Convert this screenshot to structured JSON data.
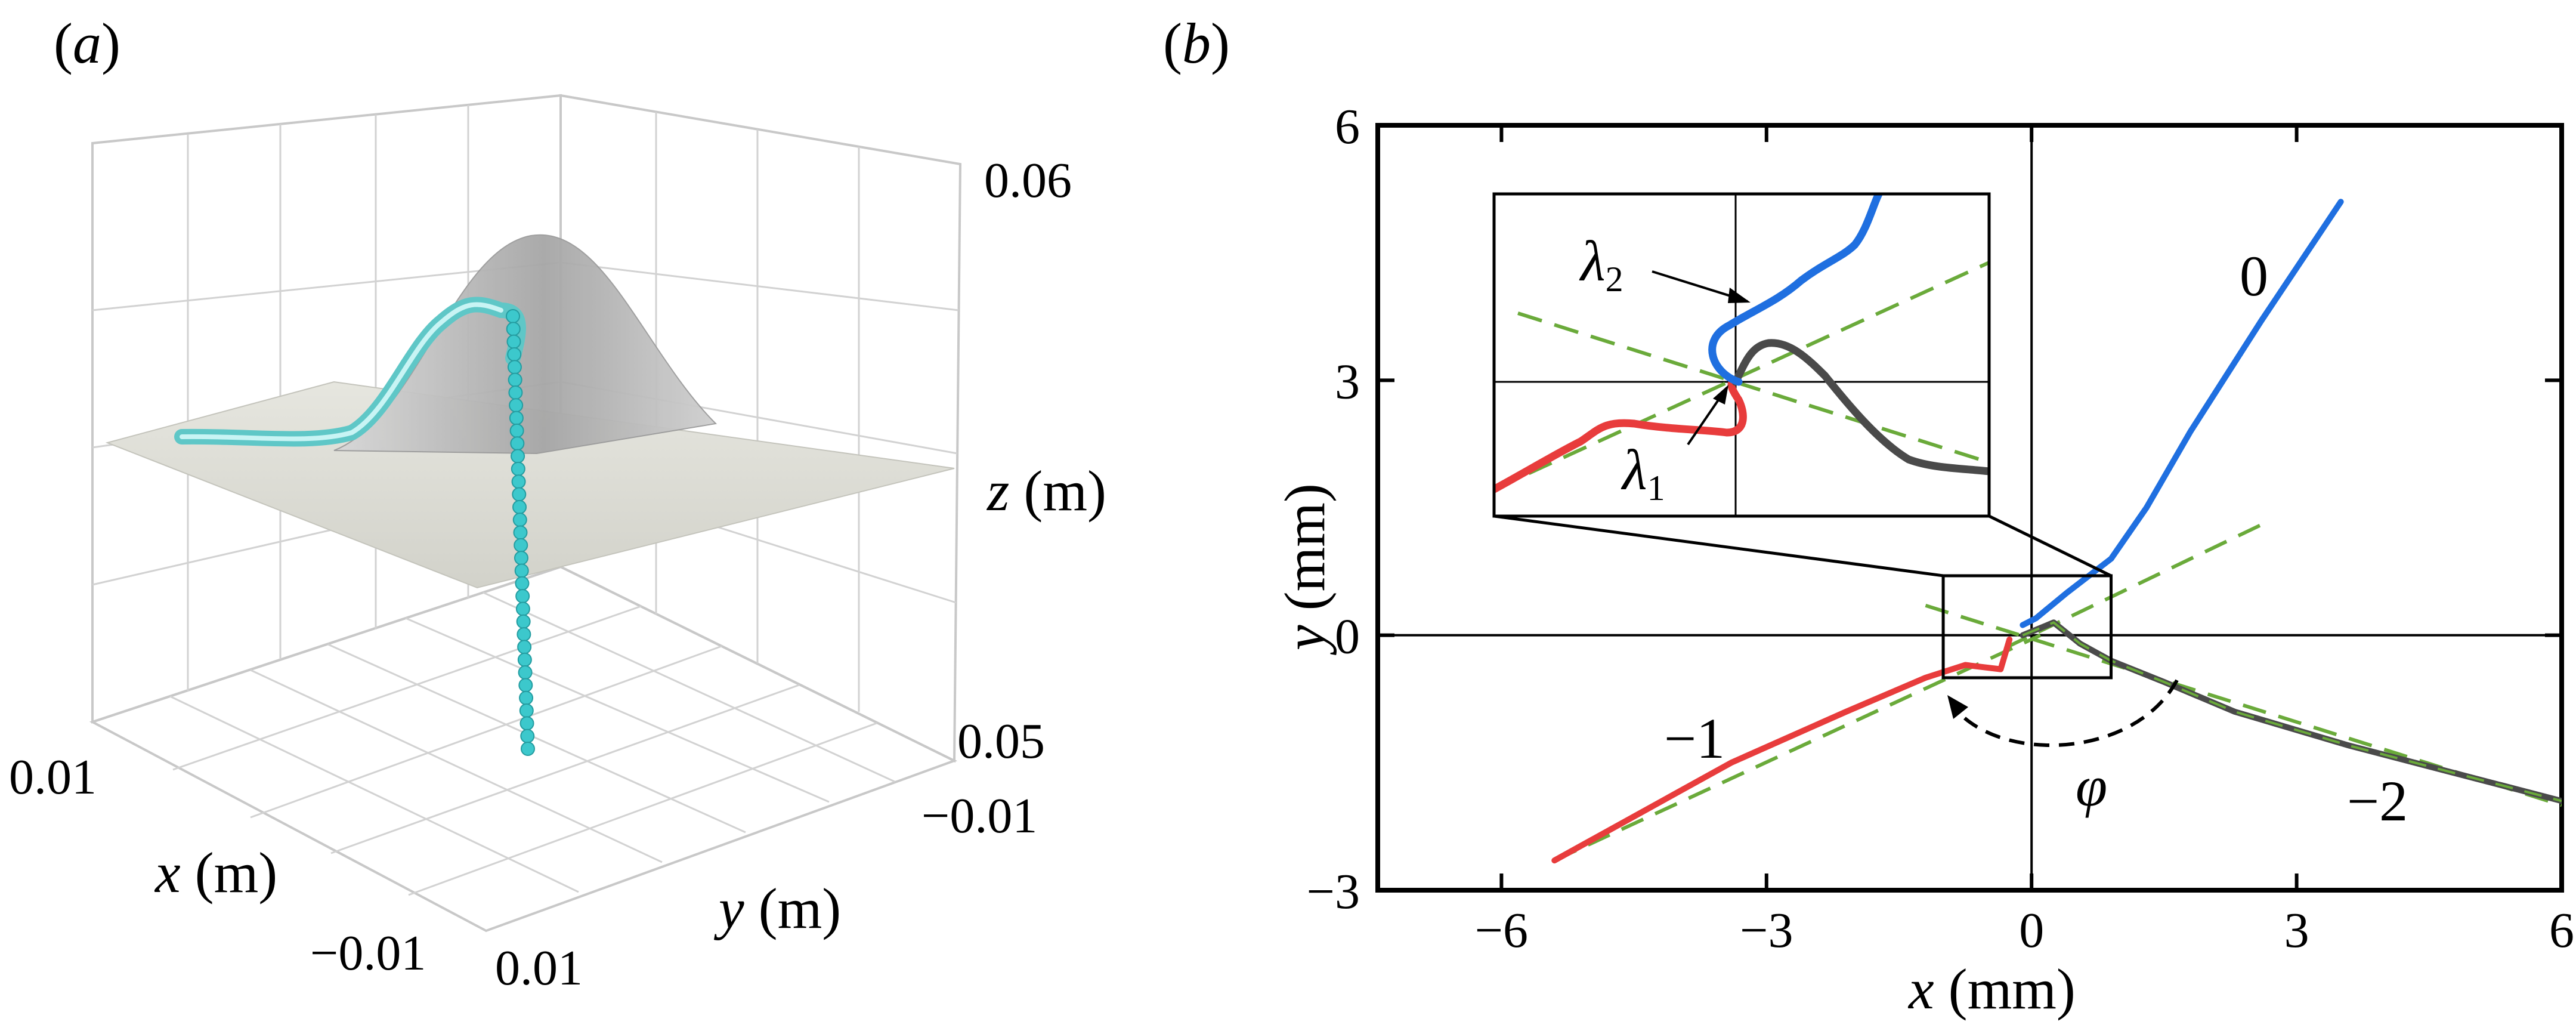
{
  "chart_data": [
    {
      "panel": "(a)",
      "type": "surface-3d",
      "xlabel": "x (m)",
      "ylabel": "y (m)",
      "zlabel": "z (m)",
      "x_ticks": [
        "0.01",
        "−0.01"
      ],
      "y_ticks": [
        "−0.01",
        "0.01"
      ],
      "z_ticks": [
        "0.06",
        "0.05"
      ],
      "xlim": [
        -0.01,
        0.01
      ],
      "ylim": [
        -0.01,
        0.01
      ],
      "zlim": [
        0.05,
        0.06
      ],
      "series": [
        {
          "name": "gaussian surface",
          "color": "#b4b4b4"
        },
        {
          "name": "flat plane",
          "color": "#dcdcd4"
        },
        {
          "name": "particle trajectory",
          "color": "#6fd6d6"
        }
      ]
    },
    {
      "panel": "(b)",
      "type": "line",
      "xlabel": "x (mm)",
      "ylabel": "y (mm)",
      "xlim": [
        -7.4,
        6
      ],
      "ylim": [
        -3,
        6
      ],
      "x_ticks": [
        -6,
        -3,
        0,
        3,
        6
      ],
      "y_ticks": [
        -3,
        0,
        3,
        6
      ],
      "x_tick_labels": [
        "−6",
        "−3",
        "0",
        "3",
        "6"
      ],
      "y_tick_labels": [
        "−3",
        "0",
        "3",
        "6"
      ],
      "series": [
        {
          "name": "0",
          "color": "#1f6fe0",
          "x": [
            -0.1,
            0.05,
            0.4,
            0.9,
            1.3,
            1.8,
            2.6,
            3.5
          ],
          "y": [
            0.12,
            0.2,
            0.5,
            0.9,
            1.5,
            2.4,
            3.7,
            5.1
          ]
        },
        {
          "name": "−1",
          "color": "#e83c3c",
          "x": [
            -0.25,
            -0.35,
            -0.75,
            -1.2,
            -2.1,
            -3.4,
            -5.4
          ],
          "y": [
            -0.05,
            -0.4,
            -0.35,
            -0.5,
            -0.9,
            -1.5,
            -2.65
          ]
        },
        {
          "name": "−2",
          "color": "#4a4a4a",
          "x": [
            -0.1,
            0.25,
            0.55,
            0.9,
            1.5,
            2.3,
            3.6,
            6.0
          ],
          "y": [
            0.0,
            0.15,
            -0.1,
            -0.3,
            -0.55,
            -0.9,
            -1.3,
            -1.95
          ]
        }
      ],
      "fit_lines": [
        {
          "name": "fit 0",
          "x": [
            -0.3,
            2.6
          ],
          "y": [
            -0.15,
            1.3
          ],
          "color": "#6aaa3a"
        },
        {
          "name": "fit −1",
          "x": [
            -5.4,
            0.1
          ],
          "y": [
            -2.65,
            0.0
          ],
          "color": "#6aaa3a"
        },
        {
          "name": "fit −2",
          "x": [
            -1.2,
            6.0
          ],
          "y": [
            0.35,
            -2.0
          ],
          "color": "#6aaa3a"
        }
      ],
      "annotations": [
        {
          "text": "φ",
          "kind": "angle"
        },
        {
          "text": "λ",
          "subscript": "2"
        },
        {
          "text": "λ",
          "subscript": "1"
        }
      ],
      "inset": {
        "zoom_box_x": [
          -1.0,
          0.9
        ],
        "zoom_box_y": [
          -0.5,
          0.7
        ]
      }
    }
  ]
}
